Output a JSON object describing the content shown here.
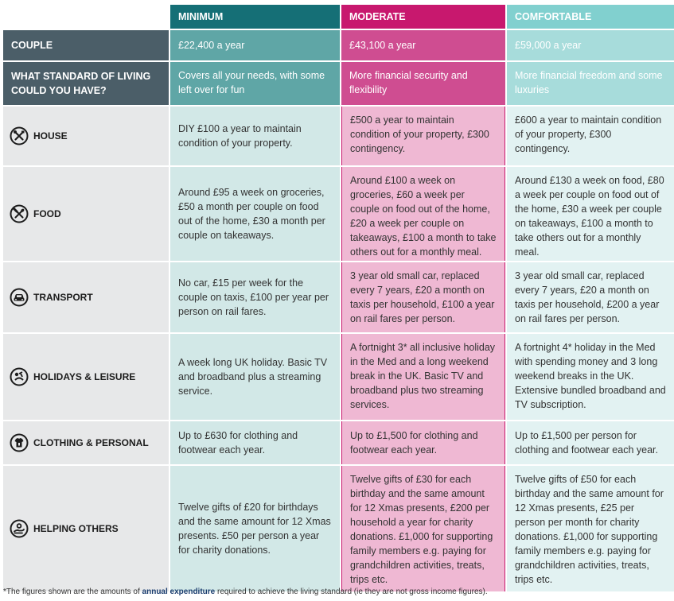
{
  "headers": {
    "minimum": "MINIMUM",
    "moderate": "MODERATE",
    "comfortable": "COMFORTABLE"
  },
  "couple": {
    "label": "COUPLE",
    "minimum": "£22,400 a year",
    "moderate": "£43,100 a year",
    "comfortable": "£59,000 a year"
  },
  "standard": {
    "label": "WHAT STANDARD OF LIVING COULD YOU HAVE?",
    "minimum": "Covers all your needs, with some left over for fun",
    "moderate": "More financial security and flexibility",
    "comfortable": "More financial freedom and some luxuries"
  },
  "rows": [
    {
      "label": "HOUSE",
      "icon": "house-tools-icon",
      "minimum": "DIY £100 a year to maintain condition of your property.",
      "moderate": "£500 a year to maintain condition of your property, £300 contingency.",
      "comfortable": "£600 a year to maintain condition of your property, £300 contingency."
    },
    {
      "label": "FOOD",
      "icon": "food-cutlery-icon",
      "minimum": "Around £95 a week on groceries, £50 a month per couple on food out of the home, £30 a month per couple on takeaways.",
      "moderate": "Around £100 a week on groceries, £60 a week per couple on food out of the home, £20 a week per couple on takeaways, £100 a month to take others out for a monthly meal.",
      "comfortable": "Around £130 a week on food, £80 a week per couple on food out of the home, £30 a week per couple on takeaways, £100 a month to take others out for a monthly meal."
    },
    {
      "label": "TRANSPORT",
      "icon": "car-icon",
      "minimum": "No car, £15 per week for the couple on taxis, £100 per year per person on rail fares.",
      "moderate": "3 year old small car, replaced every 7 years, £20 a month on taxis per household, £100 a year on rail fares per person.",
      "comfortable": "3 year old small car, replaced every 7 years, £20 a month on taxis per household, £200 a year on rail fares per person."
    },
    {
      "label": "HOLIDAYS & LEISURE",
      "icon": "holiday-icon",
      "minimum": "A week long UK holiday. Basic TV and broadband plus a streaming service.",
      "moderate": "A fortnight 3* all inclusive holiday in the Med and a long weekend break in the UK. Basic TV and broadband plus two streaming services.",
      "comfortable": "A fortnight 4* holiday in the Med with spending money and 3 long weekend breaks in the UK. Extensive bundled broadband and TV subscription."
    },
    {
      "label": "CLOTHING & PERSONAL",
      "icon": "clothing-icon",
      "minimum": "Up to £630 for clothing and footwear each year.",
      "moderate": "Up to £1,500 for clothing and footwear each year.",
      "comfortable": "Up to £1,500 per person for clothing and footwear each year."
    },
    {
      "label": "HELPING OTHERS",
      "icon": "helping-hand-icon",
      "minimum": "Twelve gifts of £20 for birthdays and the same amount for 12 Xmas presents. £50 per person a year for charity donations.",
      "moderate": "Twelve gifts of £30 for each birthday and the same amount for 12 Xmas presents, £200 per household a year for charity donations. £1,000 for supporting family members e.g. paying for grandchildren activities, treats, trips etc.",
      "comfortable": "Twelve gifts of £50 for each birthday and the same amount for 12 Xmas presents, £25 per person per month for charity donations. £1,000 for supporting family members e.g. paying for grandchildren activities, treats, trips etc."
    }
  ],
  "footnote": {
    "before": "*The figures shown are the amounts of ",
    "emphasis": "annual expenditure",
    "after": " required to achieve the living standard (ie they are not gross income figures)."
  }
}
